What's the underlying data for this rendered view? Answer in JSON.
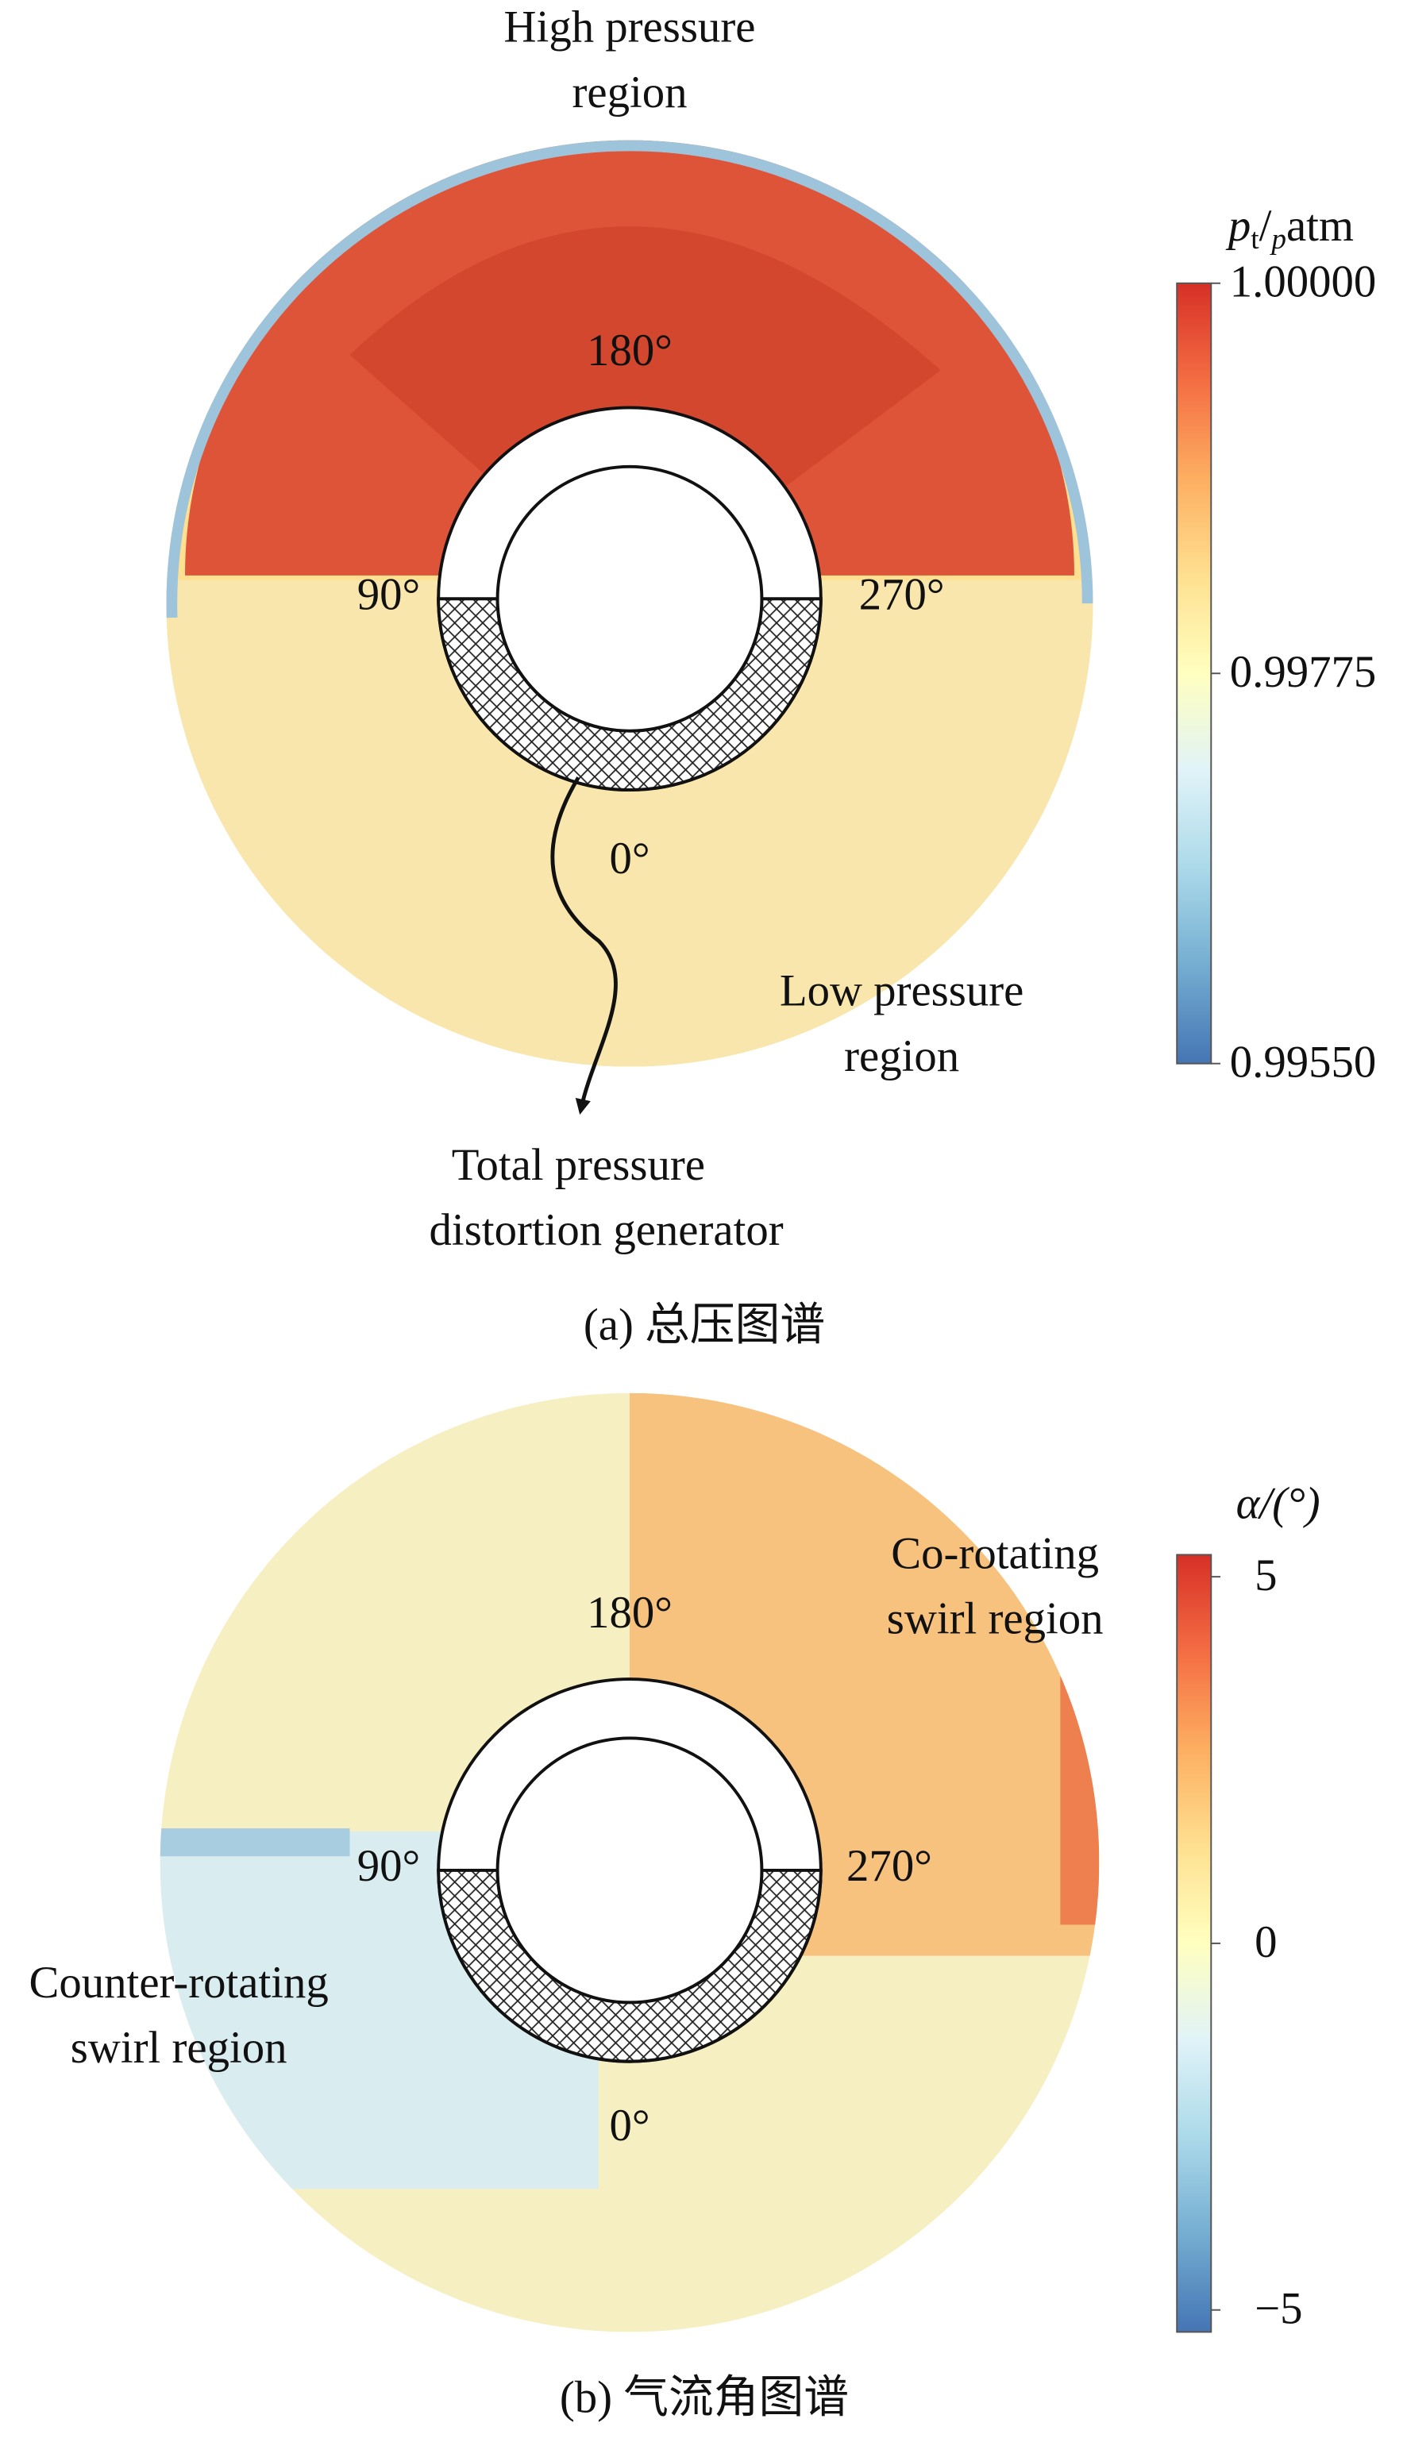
{
  "chart_data": [
    {
      "type": "annular-contour",
      "title": "(a) 总压图谱",
      "colorbar": {
        "label": [
          "p",
          "t",
          "/",
          "p",
          "atm"
        ],
        "lim": [
          0.9955,
          1.0
        ],
        "ticks": [
          {
            "value": 1.0,
            "label": "1.00000"
          },
          0.99775,
          {
            "value": 0.9955,
            "label": "0.99550"
          }
        ],
        "colors": [
          "#d73027",
          "#f46d43",
          "#fdae61",
          "#fee090",
          "#ffffbf",
          "#e0f3f8",
          "#abd9e9",
          "#74add1",
          "#4575b4"
        ]
      },
      "ring_labels": [
        "180°",
        "90°",
        "270°",
        "0°"
      ],
      "annotations": [
        {
          "lines": [
            "High pressure",
            "region"
          ],
          "color": "#c0281e"
        },
        {
          "lines": [
            "Low pressure",
            "region"
          ],
          "color": "#2aa8dc"
        },
        {
          "lines": [
            "Total pressure",
            "distortion generator"
          ],
          "color": "#111111"
        }
      ]
    },
    {
      "type": "annular-contour",
      "title": "(b) 气流角图谱",
      "colorbar": {
        "label": [
          "α/(°)"
        ],
        "lim": [
          -5.3,
          5.3
        ],
        "ticks": [
          5,
          0,
          {
            "value": -5,
            "label": "−5"
          }
        ],
        "colors": [
          "#d73027",
          "#f46d43",
          "#fdae61",
          "#fee090",
          "#ffffbf",
          "#e0f3f8",
          "#abd9e9",
          "#74add1",
          "#4575b4"
        ]
      },
      "ring_labels": [
        "180°",
        "90°",
        "270°",
        "0°"
      ],
      "annotations": [
        {
          "lines": [
            "Co-rotating",
            "swirl region"
          ],
          "color": "#c0281e"
        },
        {
          "lines": [
            "Counter-rotating",
            "swirl region"
          ],
          "color": "#2aa8dc"
        }
      ]
    }
  ]
}
